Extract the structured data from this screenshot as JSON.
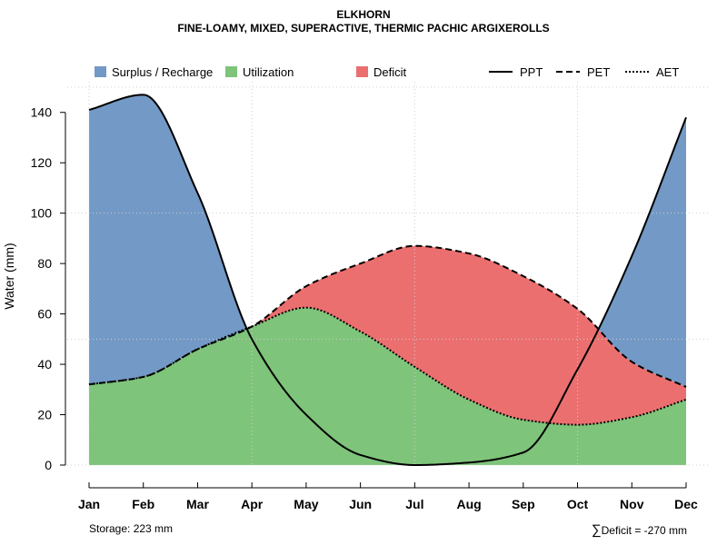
{
  "chart_data": {
    "type": "area",
    "title": "ELKHORN",
    "subtitle": "FINE-LOAMY, MIXED, SUPERACTIVE, THERMIC PACHIC ARGIXEROLLS",
    "xlabel": "",
    "ylabel": "Water (mm)",
    "ylim": [
      0,
      150
    ],
    "yticks": [
      0,
      20,
      40,
      60,
      80,
      100,
      120,
      140
    ],
    "categories": [
      "Jan",
      "Feb",
      "Mar",
      "Apr",
      "May",
      "Jun",
      "Jul",
      "Aug",
      "Sep",
      "Oct",
      "Nov",
      "Dec"
    ],
    "series": [
      {
        "name": "PPT",
        "style": "solid",
        "values": [
          141,
          147,
          108,
          50,
          20,
          4,
          0,
          1,
          5,
          38,
          83,
          138
        ]
      },
      {
        "name": "PET",
        "style": "dashed",
        "values": [
          32,
          35,
          46,
          55,
          71,
          80,
          87,
          84,
          75,
          62,
          41,
          31
        ]
      },
      {
        "name": "AET",
        "style": "dotted",
        "values": [
          32,
          35,
          46,
          55,
          62.5,
          53,
          39,
          26,
          18,
          16,
          19,
          26
        ]
      }
    ],
    "areas": [
      {
        "name": "Surplus / Recharge",
        "color": "#7399C6"
      },
      {
        "name": "Utilization",
        "color": "#7EC47A"
      },
      {
        "name": "Deficit",
        "color": "#EC6F6F"
      }
    ],
    "legend_position": "top",
    "grid": true,
    "annotations": {
      "storage": "Storage: 223 mm",
      "deficit_symbol": "∑",
      "deficit": "Deficit = -270 mm"
    }
  }
}
